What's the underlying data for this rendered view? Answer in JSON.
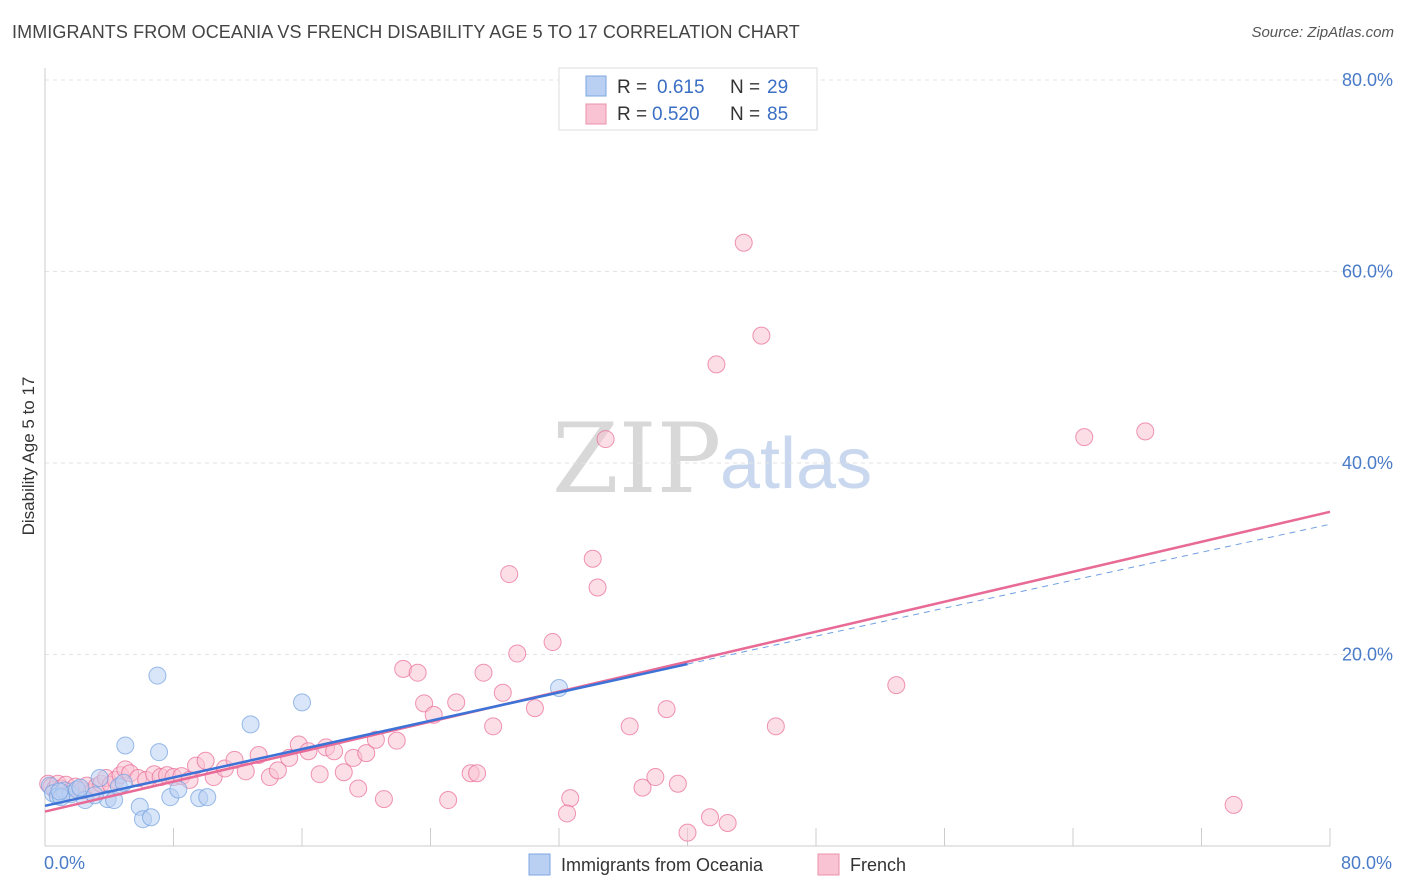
{
  "header": {
    "title": "IMMIGRANTS FROM OCEANIA VS FRENCH DISABILITY AGE 5 TO 17 CORRELATION CHART",
    "source": "Source: ZipAtlas.com"
  },
  "watermark": {
    "zip": "ZIP",
    "atlas": "atlas"
  },
  "legend_box": {
    "rows": [
      {
        "r_label": "R =",
        "r_value": "0.615",
        "n_label": "N =",
        "n_value": "29",
        "color": "#a9c6f0"
      },
      {
        "r_label": "R =",
        "r_value": "0.520",
        "n_label": "N =",
        "n_value": "85",
        "color": "#f7b8cb"
      }
    ]
  },
  "chart_data": {
    "type": "scatter",
    "title": "IMMIGRANTS FROM OCEANIA VS FRENCH DISABILITY AGE 5 TO 17 CORRELATION CHART",
    "xlabel": "",
    "ylabel": "Disability Age 5 to 17",
    "xlim": [
      0,
      80
    ],
    "ylim": [
      0,
      80
    ],
    "x_tick_labels": [
      "0.0%",
      "80.0%"
    ],
    "y_tick_labels": [
      "20.0%",
      "40.0%",
      "60.0%",
      "80.0%"
    ],
    "y_ticks": [
      20,
      40,
      60,
      80
    ],
    "grid": true,
    "legend": [
      "Immigrants from Oceania",
      "French"
    ],
    "series": [
      {
        "name": "Immigrants from Oceania",
        "color": "#6f9fe0",
        "fill": "#b9d0f3",
        "R": 0.615,
        "N": 29,
        "trend": {
          "x0": 0,
          "y0": 4.2,
          "x1": 40,
          "y1": 19.0,
          "dashed_to_x": 80,
          "dashed_to_y": 33.6
        },
        "points": [
          [
            0.3,
            6.3
          ],
          [
            0.5,
            5.5
          ],
          [
            0.8,
            5.2
          ],
          [
            1.2,
            5.8
          ],
          [
            1.6,
            5.4
          ],
          [
            2.0,
            5.9
          ],
          [
            2.5,
            4.8
          ],
          [
            3.4,
            7.1
          ],
          [
            3.9,
            4.9
          ],
          [
            4.3,
            4.8
          ],
          [
            4.6,
            6.2
          ],
          [
            5.9,
            4.1
          ],
          [
            6.1,
            2.8
          ],
          [
            6.6,
            3.0
          ],
          [
            7.8,
            5.1
          ],
          [
            8.3,
            5.9
          ],
          [
            9.6,
            5.0
          ],
          [
            10.1,
            5.1
          ],
          [
            7.1,
            9.8
          ],
          [
            5.0,
            10.5
          ],
          [
            7.0,
            17.8
          ],
          [
            12.8,
            12.7
          ],
          [
            16.0,
            15.0
          ],
          [
            32.0,
            16.5
          ],
          [
            1.0,
            5.1
          ],
          [
            2.2,
            6.1
          ],
          [
            3.1,
            5.3
          ],
          [
            4.9,
            6.6
          ],
          [
            0.9,
            5.7
          ]
        ]
      },
      {
        "name": "French",
        "color": "#e86a96",
        "fill": "#f9c3d4",
        "R": 0.52,
        "N": 85,
        "trend": {
          "x0": 0,
          "y0": 3.6,
          "x1": 80,
          "y1": 34.9
        },
        "points": [
          [
            0.2,
            6.5
          ],
          [
            0.4,
            6.2
          ],
          [
            0.6,
            5.9
          ],
          [
            0.8,
            6.5
          ],
          [
            1.0,
            6.0
          ],
          [
            1.3,
            6.4
          ],
          [
            1.6,
            5.7
          ],
          [
            1.9,
            6.2
          ],
          [
            2.3,
            5.8
          ],
          [
            2.6,
            6.3
          ],
          [
            2.9,
            5.6
          ],
          [
            3.2,
            6.2
          ],
          [
            3.5,
            6.5
          ],
          [
            3.8,
            7.1
          ],
          [
            4.1,
            6.4
          ],
          [
            4.4,
            6.9
          ],
          [
            4.7,
            7.4
          ],
          [
            5.0,
            8.0
          ],
          [
            5.3,
            7.6
          ],
          [
            5.8,
            7.1
          ],
          [
            6.3,
            6.9
          ],
          [
            6.8,
            7.5
          ],
          [
            7.2,
            7.2
          ],
          [
            7.6,
            7.4
          ],
          [
            8.0,
            7.2
          ],
          [
            8.5,
            7.3
          ],
          [
            9.0,
            6.9
          ],
          [
            9.4,
            8.4
          ],
          [
            10.0,
            8.9
          ],
          [
            10.5,
            7.2
          ],
          [
            11.2,
            8.1
          ],
          [
            11.8,
            9.0
          ],
          [
            12.5,
            7.8
          ],
          [
            13.3,
            9.5
          ],
          [
            14.0,
            7.2
          ],
          [
            14.5,
            7.9
          ],
          [
            15.2,
            9.2
          ],
          [
            15.8,
            10.6
          ],
          [
            16.4,
            9.9
          ],
          [
            17.1,
            7.5
          ],
          [
            17.5,
            10.3
          ],
          [
            18.0,
            9.9
          ],
          [
            18.6,
            7.7
          ],
          [
            19.2,
            9.2
          ],
          [
            19.5,
            6.0
          ],
          [
            20.0,
            9.7
          ],
          [
            20.6,
            11.1
          ],
          [
            21.1,
            4.9
          ],
          [
            21.9,
            11.0
          ],
          [
            22.3,
            18.5
          ],
          [
            23.2,
            18.1
          ],
          [
            23.6,
            14.9
          ],
          [
            24.2,
            13.7
          ],
          [
            25.1,
            4.8
          ],
          [
            25.6,
            15.0
          ],
          [
            26.5,
            7.6
          ],
          [
            26.9,
            7.6
          ],
          [
            27.3,
            18.1
          ],
          [
            27.9,
            12.5
          ],
          [
            28.5,
            16.0
          ],
          [
            28.9,
            28.4
          ],
          [
            29.4,
            20.1
          ],
          [
            30.5,
            14.4
          ],
          [
            31.6,
            21.3
          ],
          [
            32.7,
            5.0
          ],
          [
            32.5,
            3.4
          ],
          [
            34.1,
            30.0
          ],
          [
            34.4,
            27.0
          ],
          [
            34.9,
            42.5
          ],
          [
            36.4,
            12.5
          ],
          [
            37.2,
            6.1
          ],
          [
            38.0,
            7.2
          ],
          [
            38.7,
            14.3
          ],
          [
            39.4,
            6.5
          ],
          [
            40.0,
            1.4
          ],
          [
            41.4,
            3.0
          ],
          [
            42.5,
            2.4
          ],
          [
            41.8,
            50.3
          ],
          [
            43.5,
            63.0
          ],
          [
            44.6,
            53.3
          ],
          [
            45.5,
            12.5
          ],
          [
            53.0,
            16.8
          ],
          [
            64.7,
            42.7
          ],
          [
            68.5,
            43.3
          ],
          [
            74.0,
            4.3
          ]
        ]
      }
    ]
  }
}
